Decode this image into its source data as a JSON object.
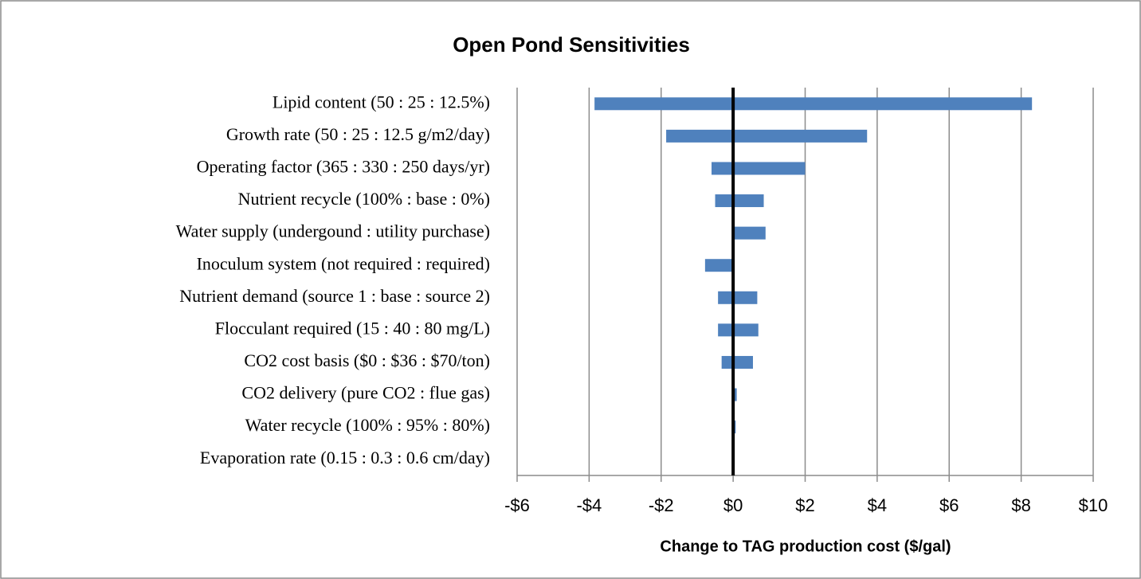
{
  "chart_data": {
    "type": "tornado",
    "title": "Open Pond Sensitivities",
    "x_label": "Change to TAG production cost ($/gal)",
    "categories": [
      "Lipid content (50 : 25 : 12.5%)",
      "Growth rate (50 : 25 : 12.5 g/m2/day)",
      "Operating factor (365 : 330 : 250 days/yr)",
      "Nutrient recycle (100% : base : 0%)",
      "Water supply (undergound : utility purchase)",
      "Inoculum system (not required : required)",
      "Nutrient demand (source 1 : base : source 2)",
      "Flocculant required (15 : 40 : 80 mg/L)",
      "CO2 cost basis ($0 : $36 : $70/ton)",
      "CO2 delivery (pure CO2 : flue gas)",
      "Water recycle (100% : 95% : 80%)",
      "Evaporation rate (0.15 : 0.3 : 0.6 cm/day)"
    ],
    "series": [
      {
        "color": "#4f81bd",
        "values": [
          -3.85,
          -1.86,
          -0.6,
          -0.5,
          0,
          -0.78,
          -0.42,
          -0.42,
          -0.32,
          0,
          0,
          0
        ]
      },
      {
        "color": "#4f81bd",
        "values": [
          8.3,
          3.72,
          2.0,
          0.85,
          0.9,
          0,
          0.67,
          0.7,
          0.55,
          0.1,
          0.07,
          0
        ]
      }
    ],
    "xlim": [
      -6,
      10
    ],
    "xticks": [
      {
        "value": -6,
        "label": "-$6"
      },
      {
        "value": -4,
        "label": "-$4"
      },
      {
        "value": -2,
        "label": "-$2"
      },
      {
        "value": 0,
        "label": "$0"
      },
      {
        "value": 2,
        "label": "$2"
      },
      {
        "value": 4,
        "label": "$4"
      },
      {
        "value": 6,
        "label": "$6"
      },
      {
        "value": 8,
        "label": "$8"
      },
      {
        "value": 10,
        "label": "$10"
      }
    ],
    "grid": true
  }
}
